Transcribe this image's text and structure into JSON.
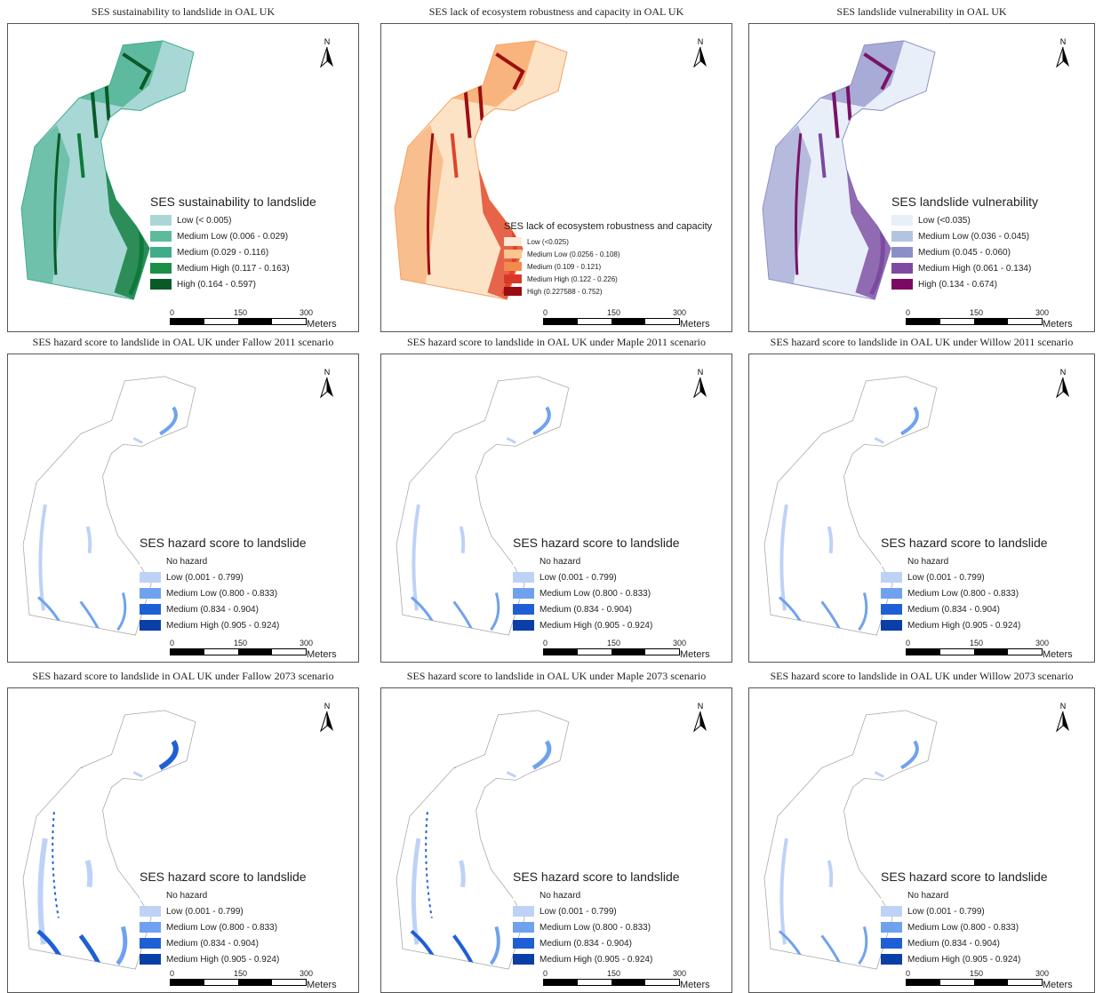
{
  "north_label": "N",
  "scale": {
    "labels": [
      "0",
      "150",
      "300"
    ],
    "unit": "Meters"
  },
  "hazard_legend": {
    "title": "SES hazard score to landslide",
    "items": [
      {
        "label": "No hazard",
        "color": "#ffffff"
      },
      {
        "label": "Low (0.001 - 0.799)",
        "color": "#bed2f7"
      },
      {
        "label": "Medium Low (0.800 - 0.833)",
        "color": "#6fa2ee"
      },
      {
        "label": "Medium (0.834 - 0.904)",
        "color": "#1f5fd6"
      },
      {
        "label": "Medium High (0.905 - 0.924)",
        "color": "#0a3fa8"
      }
    ]
  },
  "panels": [
    {
      "title": "SES sustainability to landslide in OAL UK",
      "fill": "#a9d7d6",
      "accents": [
        "#3fae88",
        "#0d7a3a",
        "#0a5a28"
      ],
      "legend": {
        "title": "SES sustainability to landslide",
        "items": [
          {
            "label": "Low (< 0.005)",
            "color": "#a9d7d6"
          },
          {
            "label": "Medium Low (0.006 - 0.029)",
            "color": "#5dbb9c"
          },
          {
            "label": "Medium (0.029 - 0.116)",
            "color": "#3fae88"
          },
          {
            "label": "Medium High (0.117 - 0.163)",
            "color": "#1b8f46"
          },
          {
            "label": "High (0.164 - 0.597)",
            "color": "#0a5a28"
          }
        ]
      }
    },
    {
      "title": "SES lack of ecosystem robustness and capacity in OAL UK",
      "fill": "#fde3c6",
      "accents": [
        "#f6a060",
        "#e0432a",
        "#9c0e10"
      ],
      "legend": {
        "title": "SES lack of ecosystem robustness and capacity",
        "items": [
          {
            "label": "Low (<0.025)",
            "color": "#fde9d6"
          },
          {
            "label": "Medium Low (0.0256 - 0.108)",
            "color": "#fbc58f"
          },
          {
            "label": "Medium (0.109 - 0.121)",
            "color": "#f48a4a"
          },
          {
            "label": "Medium High (0.122 - 0.226)",
            "color": "#d9372a"
          },
          {
            "label": "High (0.227588 - 0.752)",
            "color": "#990c12"
          }
        ]
      }
    },
    {
      "title": "SES landslide vulnerability in OAL UK",
      "fill": "#e9eff8",
      "accents": [
        "#8c8fc6",
        "#7a4aa0",
        "#7a1268"
      ],
      "legend": {
        "title": "SES landslide vulnerability",
        "items": [
          {
            "label": "Low (<0.035)",
            "color": "#e9eff8"
          },
          {
            "label": "Medium Low (0.036 - 0.045)",
            "color": "#b3c4e0"
          },
          {
            "label": "Medium (0.045 - 0.060)",
            "color": "#8c8fc6"
          },
          {
            "label": "Medium High (0.061 - 0.134)",
            "color": "#7d4aa0"
          },
          {
            "label": "High (0.134 - 0.674)",
            "color": "#7a0a63"
          }
        ]
      }
    },
    {
      "title": "SES hazard score to landslide in OAL UK under Fallow 2011 scenario",
      "intensity": 1
    },
    {
      "title": "SES hazard score to landslide in OAL UK under Maple 2011 scenario",
      "intensity": 1
    },
    {
      "title": "SES hazard score to landslide in OAL UK under Willow 2011 scenario",
      "intensity": 1
    },
    {
      "title": "SES hazard score to landslide in OAL UK under Fallow 2073 scenario",
      "intensity": 3
    },
    {
      "title": "SES hazard score to landslide in OAL UK under Maple 2073 scenario",
      "intensity": 2
    },
    {
      "title": "SES hazard score to landslide in OAL UK under Willow 2073 scenario",
      "intensity": 1
    }
  ]
}
